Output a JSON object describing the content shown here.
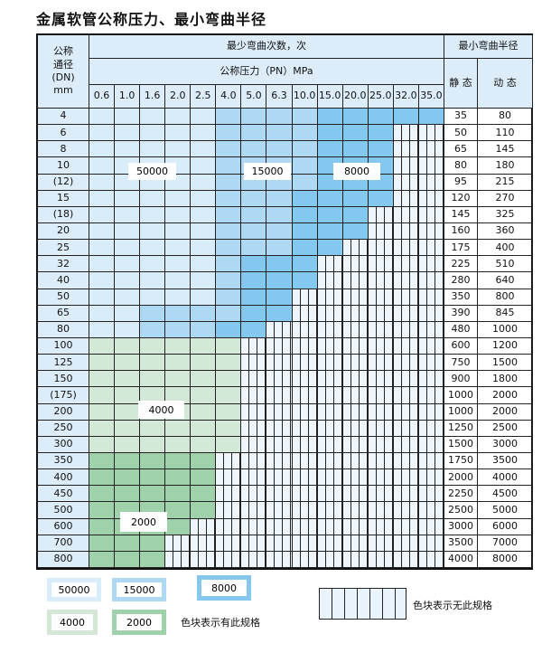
{
  "title": "金属软管公称压力、最小弯曲半径",
  "header": {
    "dn": "公称\n通径\n(DN)\nmm",
    "cycles": "最少弯曲次数，次",
    "pressure": "公称压力（PN）MPa",
    "radius": "最小弯曲半径",
    "static": "静 态",
    "dynamic": "动 态"
  },
  "pressures": [
    "0.6",
    "1.0",
    "1.6",
    "2.0",
    "2.5",
    "4.0",
    "5.0",
    "6.3",
    "10.0",
    "15.0",
    "20.0",
    "25.0",
    "32.0",
    "35.0"
  ],
  "categories": {
    "a": {
      "value": "50000",
      "color": "#d8ecfa"
    },
    "b": {
      "value": "15000",
      "color": "#aed8f4"
    },
    "c": {
      "value": "8000",
      "color": "#84c7ef"
    },
    "g": {
      "value": "4000",
      "color": "#d3e8d6"
    },
    "h": {
      "value": "2000",
      "color": "#9fd1ab"
    },
    "n": {
      "value": "",
      "color": "#eef6fc"
    }
  },
  "rows": [
    {
      "dn": "4",
      "cells": "aaaaabbbbccccc",
      "static": "35",
      "dynamic": "80"
    },
    {
      "dn": "6",
      "cells": "aaaaabbbbcccnn",
      "static": "50",
      "dynamic": "110"
    },
    {
      "dn": "8",
      "cells": "aaaaabbbbcccnn",
      "static": "65",
      "dynamic": "145"
    },
    {
      "dn": "10",
      "cells": "aaaaabbbbcccnn",
      "static": "80",
      "dynamic": "180"
    },
    {
      "dn": "(12)",
      "cells": "aaaaabbbbcccnn",
      "static": "95",
      "dynamic": "215"
    },
    {
      "dn": "15",
      "cells": "aaaaabbbccccnn",
      "static": "120",
      "dynamic": "270"
    },
    {
      "dn": "(18)",
      "cells": "aaaaabbbcccnnn",
      "static": "145",
      "dynamic": "325"
    },
    {
      "dn": "20",
      "cells": "aaaaabbbcccnnn",
      "static": "160",
      "dynamic": "360"
    },
    {
      "dn": "25",
      "cells": "aaaaabbbccnnnn",
      "static": "175",
      "dynamic": "400"
    },
    {
      "dn": "32",
      "cells": "aaaaabcccnnnnn",
      "static": "225",
      "dynamic": "510"
    },
    {
      "dn": "40",
      "cells": "aaaaabcccnnnnn",
      "static": "280",
      "dynamic": "640"
    },
    {
      "dn": "50",
      "cells": "aaaaabccnnnnnn",
      "static": "350",
      "dynamic": "800"
    },
    {
      "dn": "65",
      "cells": "aabbbbccnnnnnn",
      "static": "390",
      "dynamic": "845"
    },
    {
      "dn": "80",
      "cells": "aabbbccnnnnnnn",
      "static": "480",
      "dynamic": "1000"
    },
    {
      "dn": "100",
      "cells": "ggggggnnnnnnnn",
      "static": "600",
      "dynamic": "1200"
    },
    {
      "dn": "125",
      "cells": "ggggggnnnnnnnn",
      "static": "750",
      "dynamic": "1500"
    },
    {
      "dn": "150",
      "cells": "ggggggnnnnnnnn",
      "static": "900",
      "dynamic": "1800"
    },
    {
      "dn": "(175)",
      "cells": "ggggggnnnnnnnn",
      "static": "1000",
      "dynamic": "2000"
    },
    {
      "dn": "200",
      "cells": "ggggggnnnnnnnn",
      "static": "1000",
      "dynamic": "2000"
    },
    {
      "dn": "250",
      "cells": "ggggggnnnnnnnn",
      "static": "1250",
      "dynamic": "2500"
    },
    {
      "dn": "300",
      "cells": "ggggggnnnnnnnn",
      "static": "1500",
      "dynamic": "3000"
    },
    {
      "dn": "350",
      "cells": "hhhhhnnnnnnnnn",
      "static": "1750",
      "dynamic": "3500"
    },
    {
      "dn": "400",
      "cells": "hhhhhnnnnnnnnn",
      "static": "2000",
      "dynamic": "4000"
    },
    {
      "dn": "450",
      "cells": "hhhhhnnnnnnnnn",
      "static": "2250",
      "dynamic": "4500"
    },
    {
      "dn": "500",
      "cells": "hhhhhnnnnnnnnn",
      "static": "2500",
      "dynamic": "5000"
    },
    {
      "dn": "600",
      "cells": "hhhhnnnnnnnnnn",
      "static": "3000",
      "dynamic": "6000"
    },
    {
      "dn": "700",
      "cells": "hhhnnnnnnnnnnn",
      "static": "3500",
      "dynamic": "7000"
    },
    {
      "dn": "800",
      "cells": "hhhnnnnnnnnnnn",
      "static": "4000",
      "dynamic": "8000"
    }
  ],
  "region_labels": {
    "a": "50000",
    "b": "15000",
    "c": "8000",
    "g": "4000",
    "h": "2000"
  },
  "legend": {
    "a": "50000",
    "b": "15000",
    "c": "8000",
    "g": "4000",
    "h": "2000",
    "has_spec": "色块表示有此规格",
    "no_spec": "色块表示无此规格"
  }
}
